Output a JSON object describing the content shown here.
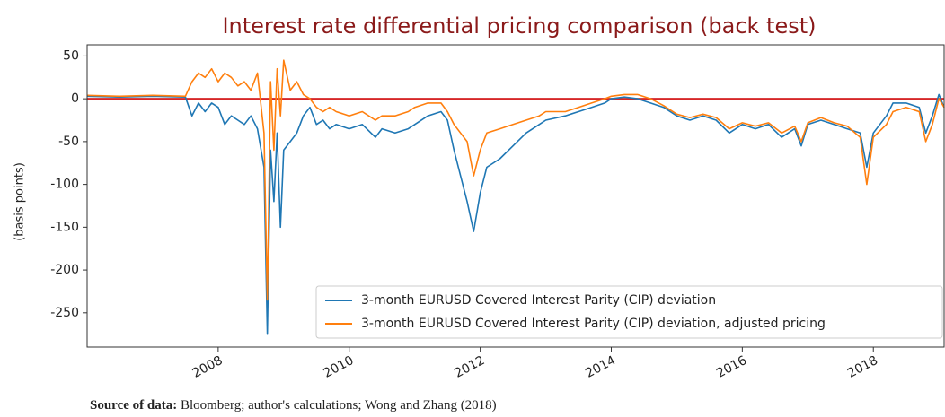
{
  "chart_data": {
    "type": "line",
    "title": "Interest rate differential pricing comparison (back test)",
    "ylabel": "(basis points)",
    "source_label": "Source of data:",
    "source": "Bloomberg; author's calculations; Wong and Zhang (2018)",
    "x": [
      2006.0,
      2006.5,
      2007.0,
      2007.5,
      2007.6,
      2007.7,
      2007.8,
      2007.9,
      2008.0,
      2008.1,
      2008.2,
      2008.3,
      2008.4,
      2008.5,
      2008.6,
      2008.7,
      2008.75,
      2008.8,
      2008.85,
      2008.9,
      2008.95,
      2009.0,
      2009.1,
      2009.2,
      2009.3,
      2009.4,
      2009.5,
      2009.6,
      2009.7,
      2009.8,
      2010.0,
      2010.2,
      2010.4,
      2010.5,
      2010.7,
      2010.9,
      2011.0,
      2011.2,
      2011.4,
      2011.5,
      2011.6,
      2011.7,
      2011.8,
      2011.9,
      2012.0,
      2012.1,
      2012.3,
      2012.5,
      2012.7,
      2012.9,
      2013.0,
      2013.3,
      2013.5,
      2013.7,
      2013.9,
      2014.0,
      2014.2,
      2014.4,
      2014.6,
      2014.8,
      2015.0,
      2015.2,
      2015.4,
      2015.6,
      2015.8,
      2016.0,
      2016.2,
      2016.4,
      2016.6,
      2016.8,
      2016.9,
      2017.0,
      2017.2,
      2017.4,
      2017.6,
      2017.8,
      2017.9,
      2018.0,
      2018.2,
      2018.3,
      2018.5,
      2018.7,
      2018.8,
      2018.9,
      2019.0,
      2019.08
    ],
    "series": [
      {
        "name": "3-month EURUSD Covered Interest Parity (CIP) deviation",
        "color": "#1f77b4",
        "values": [
          3,
          2,
          3,
          2,
          -20,
          -5,
          -15,
          -5,
          -10,
          -30,
          -20,
          -25,
          -30,
          -20,
          -35,
          -80,
          -275,
          -60,
          -120,
          -40,
          -150,
          -60,
          -50,
          -40,
          -20,
          -10,
          -30,
          -25,
          -35,
          -30,
          -35,
          -30,
          -45,
          -35,
          -40,
          -35,
          -30,
          -20,
          -15,
          -25,
          -60,
          -90,
          -120,
          -155,
          -110,
          -80,
          -70,
          -55,
          -40,
          -30,
          -25,
          -20,
          -15,
          -10,
          -5,
          0,
          2,
          0,
          -5,
          -10,
          -20,
          -25,
          -20,
          -25,
          -40,
          -30,
          -35,
          -30,
          -45,
          -35,
          -55,
          -30,
          -25,
          -30,
          -35,
          -40,
          -80,
          -40,
          -20,
          -5,
          -5,
          -10,
          -40,
          -20,
          5,
          -10
        ]
      },
      {
        "name": "3-month EURUSD Covered Interest Parity (CIP) deviation, adjusted pricing",
        "color": "#ff7f0e",
        "values": [
          4,
          3,
          4,
          3,
          20,
          30,
          25,
          35,
          20,
          30,
          25,
          15,
          20,
          10,
          30,
          -40,
          -235,
          20,
          -60,
          35,
          -20,
          45,
          10,
          20,
          5,
          0,
          -10,
          -15,
          -10,
          -15,
          -20,
          -15,
          -25,
          -20,
          -20,
          -15,
          -10,
          -5,
          -5,
          -15,
          -30,
          -40,
          -50,
          -90,
          -60,
          -40,
          -35,
          -30,
          -25,
          -20,
          -15,
          -15,
          -10,
          -5,
          0,
          3,
          5,
          5,
          0,
          -8,
          -18,
          -22,
          -18,
          -22,
          -35,
          -28,
          -32,
          -28,
          -40,
          -32,
          -50,
          -28,
          -22,
          -28,
          -32,
          -45,
          -100,
          -45,
          -30,
          -15,
          -10,
          -15,
          -50,
          -30,
          0,
          -10
        ]
      }
    ],
    "hline": 0,
    "hline_color": "#d62728",
    "xlim": [
      2006.0,
      2019.08
    ],
    "xticks": [
      2008,
      2010,
      2012,
      2014,
      2016,
      2018
    ],
    "ylim": [
      -290,
      63
    ],
    "yticks": [
      50,
      0,
      -50,
      -100,
      -150,
      -200,
      -250
    ],
    "legend": "lower right",
    "title_color": "#8b1a1a"
  }
}
